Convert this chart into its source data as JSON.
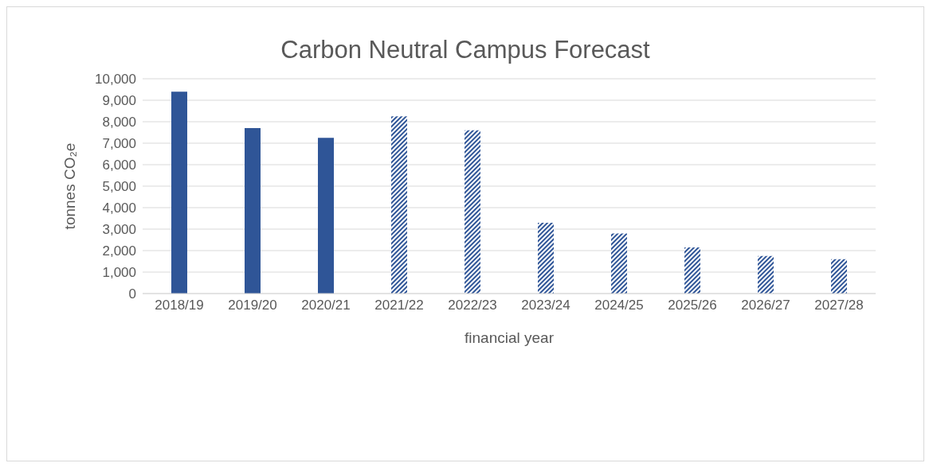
{
  "chart_data": {
    "type": "bar",
    "title": "Carbon Neutral Campus Forecast",
    "xlabel": "financial year",
    "ylabel": "tonnes  CO₂e",
    "categories": [
      "2018/19",
      "2019/20",
      "2020/21",
      "2021/22",
      "2022/23",
      "2023/24",
      "2024/25",
      "2025/26",
      "2026/27",
      "2027/28"
    ],
    "series": [
      {
        "color": "#2f5597",
        "values": [
          9400,
          7700,
          7250,
          null,
          null,
          null,
          null,
          null,
          null,
          null
        ]
      },
      {
        "color": "#2f5597",
        "values": [
          null,
          null,
          null,
          8250,
          7600,
          3300,
          2800,
          2150,
          1750,
          1600
        ]
      }
    ],
    "ylim": [
      0,
      10000
    ],
    "yticks": [
      {
        "value": 0,
        "label": "0"
      },
      {
        "value": 1000,
        "label": "1,000"
      },
      {
        "value": 2000,
        "label": "2,000"
      },
      {
        "value": 3000,
        "label": "3,000"
      },
      {
        "value": 4000,
        "label": "4,000"
      },
      {
        "value": 5000,
        "label": "5,000"
      },
      {
        "value": 6000,
        "label": "6,000"
      },
      {
        "value": 7000,
        "label": "7,000"
      },
      {
        "value": 8000,
        "label": "8,000"
      },
      {
        "value": 9000,
        "label": "9,000"
      },
      {
        "value": 10000,
        "label": "10,000"
      }
    ],
    "grid": "y",
    "legend": false
  }
}
